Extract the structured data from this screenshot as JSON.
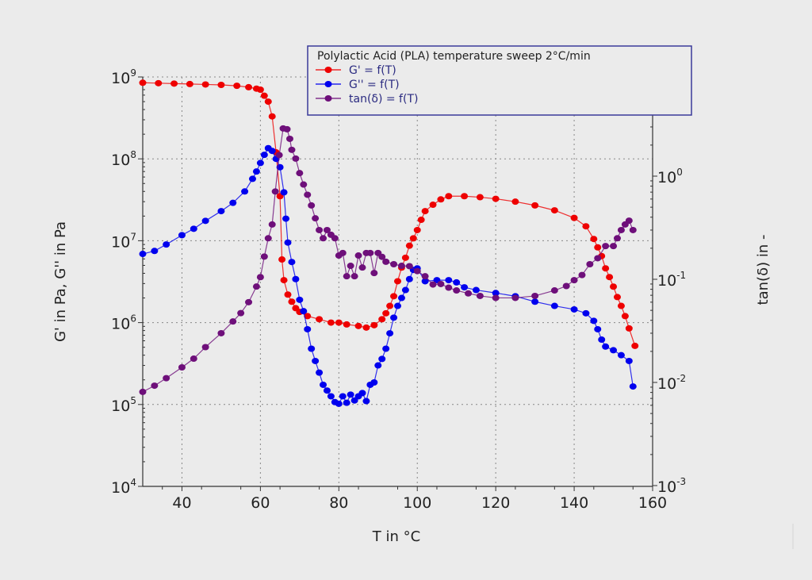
{
  "chart_data": {
    "type": "line",
    "title": "Polylactic Acid (PLA) temperature sweep 2°C/min",
    "xlabel": "T in °C",
    "ylabel_left": "G' in Pa, G'' in Pa",
    "ylabel_right": "tan(δ) in -",
    "xlim": [
      30,
      160
    ],
    "ylim_left": [
      10000.0,
      1000000000.0
    ],
    "ylim_right": [
      0.001,
      10
    ],
    "yscale": "log",
    "x_ticks": [
      "40",
      "60",
      "80",
      "100",
      "120",
      "140",
      "160"
    ],
    "y_left_ticks": [
      {
        "base": "10",
        "exp": "4"
      },
      {
        "base": "10",
        "exp": "5"
      },
      {
        "base": "10",
        "exp": "6"
      },
      {
        "base": "10",
        "exp": "7"
      },
      {
        "base": "10",
        "exp": "8"
      },
      {
        "base": "10",
        "exp": "9"
      }
    ],
    "y_right_ticks": [
      {
        "base": "10",
        "exp": "-3"
      },
      {
        "base": "10",
        "exp": "-2"
      },
      {
        "base": "10",
        "exp": "-1"
      },
      {
        "base": "10",
        "exp": "0"
      }
    ],
    "grid": true,
    "legend_position": "top-right",
    "series": [
      {
        "name": "G' = f(T)",
        "axis": "left",
        "color": "#ee0000",
        "x": [
          30,
          34,
          38,
          42,
          46,
          50,
          54,
          57,
          59,
          60,
          61,
          62,
          63,
          64,
          65,
          65.5,
          66,
          67,
          68,
          69,
          70,
          72,
          75,
          78,
          80,
          82,
          85,
          87,
          89,
          91,
          92,
          93,
          94,
          95,
          96,
          97,
          98,
          99,
          100,
          101,
          102,
          104,
          106,
          108,
          112,
          116,
          120,
          125,
          130,
          135,
          140,
          143,
          145,
          146,
          147,
          148,
          149,
          150,
          151,
          152,
          153,
          154,
          155.5
        ],
        "y": [
          850000000.0,
          840000000.0,
          830000000.0,
          820000000.0,
          810000000.0,
          800000000.0,
          780000000.0,
          750000000.0,
          720000000.0,
          700000000.0,
          590000000.0,
          500000000.0,
          330000000.0,
          120000000.0,
          35000000.0,
          5900000.0,
          3300000.0,
          2200000.0,
          1800000.0,
          1500000.0,
          1350000.0,
          1200000.0,
          1100000.0,
          1000000.0,
          1000000.0,
          950000.0,
          910000.0,
          870000.0,
          930000.0,
          1100000.0,
          1300000.0,
          1600000.0,
          2100000.0,
          3200000.0,
          4700000.0,
          6200000.0,
          8700000.0,
          10700000.0,
          13500000.0,
          18000000.0,
          23000000.0,
          27500000.0,
          32000000.0,
          35000000.0,
          35000000.0,
          34000000.0,
          32500000.0,
          30000000.0,
          27000000.0,
          23500000.0,
          19000000.0,
          15000000.0,
          10500000.0,
          8300000.0,
          6500000.0,
          4600000.0,
          3600000.0,
          2750000.0,
          2050000.0,
          1600000.0,
          1200000.0,
          850000.0,
          520000.0
        ]
      },
      {
        "name": "G'' = f(T)",
        "axis": "left",
        "color": "#0000ee",
        "x": [
          30,
          33,
          36,
          40,
          43,
          46,
          50,
          53,
          56,
          58,
          59,
          60,
          61,
          62,
          63,
          64,
          65,
          66,
          66.5,
          67,
          68,
          69,
          70,
          71,
          72,
          73,
          74,
          75,
          76,
          77,
          78,
          79,
          80,
          81,
          82,
          83,
          84,
          85,
          86,
          87,
          88,
          89,
          90,
          91,
          92,
          93,
          94,
          95,
          96,
          97,
          98,
          99,
          100,
          102,
          105,
          108,
          110,
          112,
          115,
          120,
          125,
          130,
          135,
          140,
          143,
          145,
          146,
          147,
          148,
          150,
          152,
          154,
          155
        ],
        "y": [
          6900000.0,
          7500000.0,
          9000000.0,
          11700000.0,
          14000000.0,
          17500000.0,
          23000000.0,
          29000000.0,
          40000000.0,
          57000000.0,
          70000000.0,
          89000000.0,
          112000000.0,
          135000000.0,
          125000000.0,
          100000000.0,
          79000000.0,
          39000000.0,
          18600000.0,
          9500000.0,
          5500000.0,
          3400000.0,
          1900000.0,
          1380000.0,
          830000.0,
          480000.0,
          340000.0,
          245000.0,
          174000.0,
          148000.0,
          126000.0,
          107000.0,
          102000.0,
          126000.0,
          105000.0,
          132000.0,
          112000.0,
          126000.0,
          138000.0,
          110000.0,
          174000.0,
          186000.0,
          300000.0,
          360000.0,
          480000.0,
          740000.0,
          1150000.0,
          1600000.0,
          2000000.0,
          2500000.0,
          3400000.0,
          4400000.0,
          4600000.0,
          3200000.0,
          3300000.0,
          3300000.0,
          3100000.0,
          2700000.0,
          2500000.0,
          2300000.0,
          2100000.0,
          1800000.0,
          1600000.0,
          1450000.0,
          1300000.0,
          1050000.0,
          830000.0,
          620000.0,
          510000.0,
          460000.0,
          400000.0,
          340000.0,
          166000.0
        ]
      },
      {
        "name": "tan(δ) = f(T)",
        "axis": "right",
        "color": "#6e0f7a",
        "x": [
          30,
          33,
          36,
          40,
          43,
          46,
          50,
          53,
          55,
          57,
          59,
          60,
          61,
          62,
          63,
          63.8,
          64.8,
          65.8,
          66.8,
          67.5,
          68,
          69,
          70,
          71,
          72,
          73,
          74,
          75,
          76,
          77,
          78,
          79,
          80,
          81,
          82,
          83,
          84,
          85,
          86,
          87,
          88,
          89,
          90,
          91,
          92,
          94,
          96,
          98,
          100,
          102,
          104,
          106,
          108,
          110,
          113,
          116,
          120,
          125,
          130,
          135,
          138,
          140,
          142,
          144,
          146,
          148,
          150,
          151,
          152,
          153,
          154,
          155
        ],
        "y": [
          0.0081,
          0.0093,
          0.011,
          0.014,
          0.017,
          0.022,
          0.03,
          0.039,
          0.047,
          0.06,
          0.085,
          0.105,
          0.166,
          0.25,
          0.34,
          0.71,
          1.6,
          2.9,
          2.85,
          2.3,
          1.8,
          1.48,
          1.07,
          0.83,
          0.66,
          0.52,
          0.39,
          0.3,
          0.25,
          0.3,
          0.27,
          0.25,
          0.17,
          0.18,
          0.107,
          0.135,
          0.107,
          0.17,
          0.13,
          0.18,
          0.18,
          0.115,
          0.18,
          0.165,
          0.148,
          0.14,
          0.135,
          0.134,
          0.12,
          0.107,
          0.089,
          0.09,
          0.083,
          0.078,
          0.073,
          0.069,
          0.066,
          0.066,
          0.069,
          0.078,
          0.086,
          0.098,
          0.11,
          0.14,
          0.16,
          0.21,
          0.21,
          0.25,
          0.3,
          0.34,
          0.37,
          0.3
        ]
      }
    ]
  }
}
